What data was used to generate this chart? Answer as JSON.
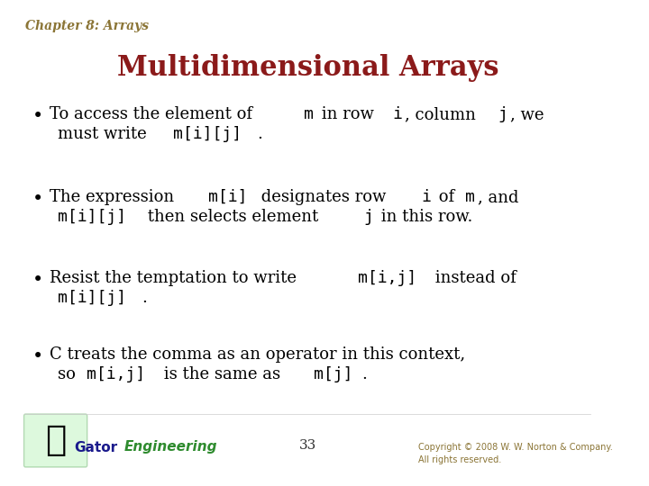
{
  "background_color": "#ffffff",
  "chapter_label": "Chapter 8: Arrays",
  "chapter_label_color": "#8B7536",
  "chapter_label_style": "italic",
  "chapter_label_fontsize": 10,
  "title": "Multidimensional Arrays",
  "title_color": "#8B1A1A",
  "title_fontsize": 22,
  "bullet_color": "#000000",
  "bullet_fontsize": 13,
  "code_color": "#000000",
  "bullets": [
    {
      "lines": [
        {
          "parts": [
            {
              "text": "To access the element of ",
              "style": "normal"
            },
            {
              "text": "m",
              "style": "mono"
            },
            {
              "text": " in row ",
              "style": "normal"
            },
            {
              "text": "i",
              "style": "mono"
            },
            {
              "text": ", column ",
              "style": "normal"
            },
            {
              "text": "j",
              "style": "mono"
            },
            {
              "text": ", we",
              "style": "normal"
            }
          ]
        },
        {
          "parts": [
            {
              "text": "must write ",
              "style": "normal"
            },
            {
              "text": "m[i][j]",
              "style": "mono"
            },
            {
              "text": ".",
              "style": "normal"
            }
          ]
        }
      ]
    },
    {
      "lines": [
        {
          "parts": [
            {
              "text": "The expression ",
              "style": "normal"
            },
            {
              "text": "m[i]",
              "style": "mono"
            },
            {
              "text": " designates row ",
              "style": "normal"
            },
            {
              "text": "i",
              "style": "mono"
            },
            {
              "text": " of ",
              "style": "normal"
            },
            {
              "text": "m",
              "style": "mono"
            },
            {
              "text": ", and",
              "style": "normal"
            }
          ]
        },
        {
          "parts": [
            {
              "text": "m[i][j]",
              "style": "mono"
            },
            {
              "text": " then selects element ",
              "style": "normal"
            },
            {
              "text": "j",
              "style": "mono"
            },
            {
              "text": " in this row.",
              "style": "normal"
            }
          ]
        }
      ]
    },
    {
      "lines": [
        {
          "parts": [
            {
              "text": "Resist the temptation to write ",
              "style": "normal"
            },
            {
              "text": "m[i,j]",
              "style": "mono"
            },
            {
              "text": " instead of",
              "style": "normal"
            }
          ]
        },
        {
          "parts": [
            {
              "text": "m[i][j]",
              "style": "mono"
            },
            {
              "text": ".",
              "style": "normal"
            }
          ]
        }
      ]
    },
    {
      "lines": [
        {
          "parts": [
            {
              "text": "C treats the comma as an operator in this context,",
              "style": "normal"
            }
          ]
        },
        {
          "parts": [
            {
              "text": "so ",
              "style": "normal"
            },
            {
              "text": "m[i,j]",
              "style": "mono"
            },
            {
              "text": " is the same as ",
              "style": "normal"
            },
            {
              "text": "m[j]",
              "style": "mono"
            },
            {
              "text": ".",
              "style": "normal"
            }
          ]
        }
      ]
    }
  ],
  "footer_page_number": "33",
  "footer_gator_text1": "Gator",
  "footer_gator_text2": "Engineering",
  "footer_gator_color1": "#1a1a8c",
  "footer_gator_color2": "#2e8b2e",
  "footer_copyright": "Copyright © 2008 W. W. Norton & Company.\nAll rights reserved.",
  "footer_copyright_color": "#8B7536",
  "footer_color": "#8B7536"
}
